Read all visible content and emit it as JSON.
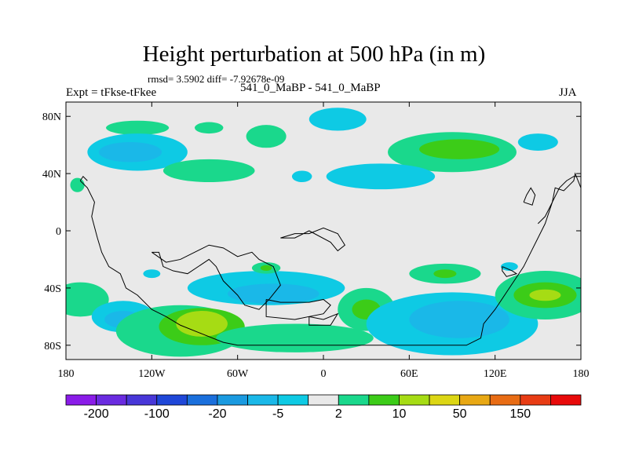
{
  "figure": {
    "title": "Height perturbation at 500 hPa (in m)",
    "stats": "rmsd= 3.5902 diff= -7.92678e-09",
    "left_label": "Expt = tFkse-tFkee",
    "center_label": "541_0_MaBP - 541_0_MaBP",
    "right_label": "JJA"
  },
  "chart_data": {
    "type": "heatmap",
    "title": "Height perturbation at 500 hPa (in m)",
    "variable": "500 hPa height perturbation (m)",
    "season": "JJA",
    "xlim": [
      -180,
      180
    ],
    "ylim": [
      -90,
      90
    ],
    "xticks": [
      -180,
      -120,
      -60,
      0,
      60,
      120,
      180
    ],
    "xtick_labels": [
      "180",
      "120W",
      "60W",
      "0",
      "60E",
      "120E",
      "180"
    ],
    "yticks": [
      80,
      40,
      0,
      -40,
      -80
    ],
    "ytick_labels": [
      "80N",
      "40N",
      "0",
      "40S",
      "80S"
    ],
    "colorbar": {
      "levels": [
        -200,
        -150,
        -100,
        -50,
        -20,
        -10,
        -5,
        -2,
        2,
        5,
        10,
        20,
        50,
        100,
        150,
        200
      ],
      "tick_labels": [
        "-200",
        "-100",
        "-20",
        "-5",
        "2",
        "10",
        "50",
        "150"
      ],
      "tick_levels": [
        -200,
        -100,
        -20,
        -5,
        2,
        10,
        50,
        150
      ],
      "colors": [
        "#8a1ce8",
        "#6a2be0",
        "#4837d8",
        "#1f47d8",
        "#1a6fdc",
        "#1a9ae0",
        "#1ab8e8",
        "#0ecae4",
        "#e9e9e9",
        "#1ad88c",
        "#3ccc18",
        "#a6dc14",
        "#dcd614",
        "#e8a814",
        "#e86c14",
        "#e83c14",
        "#e80a0a"
      ]
    },
    "fields": [
      {
        "lon": -130,
        "lat": 72,
        "rx": 22,
        "ry": 5,
        "level": 9
      },
      {
        "lon": -80,
        "lat": 72,
        "rx": 10,
        "ry": 4,
        "level": 9
      },
      {
        "lon": -130,
        "lat": 55,
        "rx": 35,
        "ry": 13,
        "level": 7
      },
      {
        "lon": -135,
        "lat": 55,
        "rx": 22,
        "ry": 7,
        "level": 6
      },
      {
        "lon": -80,
        "lat": 42,
        "rx": 32,
        "ry": 8,
        "level": 9
      },
      {
        "lon": -40,
        "lat": 66,
        "rx": 14,
        "ry": 8,
        "level": 9
      },
      {
        "lon": -15,
        "lat": 38,
        "rx": 7,
        "ry": 4,
        "level": 7
      },
      {
        "lon": 10,
        "lat": 78,
        "rx": 20,
        "ry": 8,
        "level": 7
      },
      {
        "lon": 90,
        "lat": 55,
        "rx": 45,
        "ry": 14,
        "level": 9
      },
      {
        "lon": 95,
        "lat": 57,
        "rx": 28,
        "ry": 7,
        "level": 10
      },
      {
        "lon": 150,
        "lat": 62,
        "rx": 14,
        "ry": 6,
        "level": 7
      },
      {
        "lon": 40,
        "lat": 38,
        "rx": 38,
        "ry": 9,
        "level": 7
      },
      {
        "lon": -172,
        "lat": 32,
        "rx": 5,
        "ry": 5,
        "level": 9
      },
      {
        "lon": -40,
        "lat": -40,
        "rx": 55,
        "ry": 12,
        "level": 7
      },
      {
        "lon": -35,
        "lat": -44,
        "rx": 32,
        "ry": 7,
        "level": 6
      },
      {
        "lon": -40,
        "lat": -26,
        "rx": 10,
        "ry": 4,
        "level": 9
      },
      {
        "lon": -40,
        "lat": -26,
        "rx": 4,
        "ry": 2,
        "level": 10
      },
      {
        "lon": -120,
        "lat": -30,
        "rx": 6,
        "ry": 3,
        "level": 7
      },
      {
        "lon": -170,
        "lat": -48,
        "rx": 20,
        "ry": 12,
        "level": 9
      },
      {
        "lon": -140,
        "lat": -60,
        "rx": 22,
        "ry": 11,
        "level": 7
      },
      {
        "lon": -140,
        "lat": -62,
        "rx": 13,
        "ry": 6,
        "level": 6
      },
      {
        "lon": -100,
        "lat": -70,
        "rx": 45,
        "ry": 18,
        "level": 9
      },
      {
        "lon": -85,
        "lat": -67,
        "rx": 30,
        "ry": 13,
        "level": 10
      },
      {
        "lon": -85,
        "lat": -65,
        "rx": 18,
        "ry": 9,
        "level": 11
      },
      {
        "lon": -20,
        "lat": -75,
        "rx": 55,
        "ry": 10,
        "level": 9
      },
      {
        "lon": 30,
        "lat": -55,
        "rx": 20,
        "ry": 15,
        "level": 9
      },
      {
        "lon": 30,
        "lat": -55,
        "rx": 10,
        "ry": 7,
        "level": 10
      },
      {
        "lon": 90,
        "lat": -65,
        "rx": 60,
        "ry": 22,
        "level": 7
      },
      {
        "lon": 95,
        "lat": -62,
        "rx": 35,
        "ry": 13,
        "level": 6
      },
      {
        "lon": 85,
        "lat": -30,
        "rx": 25,
        "ry": 7,
        "level": 9
      },
      {
        "lon": 85,
        "lat": -30,
        "rx": 8,
        "ry": 3,
        "level": 10
      },
      {
        "lon": 130,
        "lat": -25,
        "rx": 6,
        "ry": 3,
        "level": 7
      },
      {
        "lon": 155,
        "lat": -45,
        "rx": 35,
        "ry": 17,
        "level": 9
      },
      {
        "lon": 155,
        "lat": -45,
        "rx": 22,
        "ry": 9,
        "level": 10
      },
      {
        "lon": 155,
        "lat": -45,
        "rx": 11,
        "ry": 4,
        "level": 11
      }
    ],
    "coastlines": [
      [
        [
          -170,
          35
        ],
        [
          -165,
          30
        ],
        [
          -160,
          20
        ],
        [
          -162,
          10
        ],
        [
          -158,
          -5
        ],
        [
          -155,
          -15
        ],
        [
          -150,
          -25
        ],
        [
          -142,
          -30
        ],
        [
          -138,
          -40
        ],
        [
          -130,
          -45
        ],
        [
          -120,
          -55
        ],
        [
          -110,
          -60
        ],
        [
          -100,
          -66
        ],
        [
          -85,
          -72
        ],
        [
          -70,
          -78
        ],
        [
          -60,
          -80
        ],
        [
          -20,
          -80
        ],
        [
          60,
          -80
        ],
        [
          100,
          -80
        ],
        [
          110,
          -75
        ],
        [
          112,
          -65
        ],
        [
          120,
          -55
        ],
        [
          130,
          -40
        ],
        [
          140,
          -25
        ],
        [
          145,
          -15
        ],
        [
          150,
          -5
        ],
        [
          155,
          5
        ],
        [
          160,
          20
        ],
        [
          165,
          30
        ],
        [
          170,
          35
        ],
        [
          175,
          38
        ],
        [
          180,
          38
        ]
      ],
      [
        [
          -120,
          -15
        ],
        [
          -115,
          -15
        ],
        [
          -112,
          -25
        ],
        [
          -105,
          -28
        ],
        [
          -95,
          -30
        ],
        [
          -80,
          -20
        ],
        [
          -75,
          -25
        ],
        [
          -70,
          -35
        ],
        [
          -60,
          -45
        ],
        [
          -55,
          -52
        ],
        [
          -45,
          -55
        ],
        [
          -38,
          -48
        ],
        [
          -30,
          -38
        ],
        [
          -35,
          -25
        ],
        [
          -45,
          -20
        ],
        [
          -50,
          -15
        ],
        [
          -60,
          -18
        ],
        [
          -70,
          -12
        ],
        [
          -80,
          -10
        ],
        [
          -90,
          -15
        ],
        [
          -100,
          -20
        ],
        [
          -110,
          -22
        ],
        [
          -120,
          -15
        ]
      ],
      [
        [
          -40,
          -48
        ],
        [
          -30,
          -50
        ],
        [
          -10,
          -50
        ],
        [
          0,
          -48
        ],
        [
          5,
          -52
        ],
        [
          0,
          -58
        ],
        [
          -20,
          -62
        ],
        [
          -40,
          -60
        ],
        [
          -40,
          -48
        ]
      ],
      [
        [
          -10,
          -60
        ],
        [
          0,
          -62
        ],
        [
          10,
          -58
        ],
        [
          5,
          -66
        ],
        [
          -10,
          -66
        ],
        [
          -10,
          -60
        ]
      ],
      [
        [
          -30,
          -5
        ],
        [
          -20,
          -5
        ],
        [
          -10,
          0
        ],
        [
          5,
          -8
        ],
        [
          10,
          -14
        ],
        [
          15,
          -10
        ],
        [
          10,
          -2
        ],
        [
          0,
          2
        ],
        [
          -10,
          -2
        ],
        [
          -20,
          -2
        ],
        [
          -30,
          -5
        ]
      ],
      [
        [
          125,
          -25
        ],
        [
          132,
          -28
        ],
        [
          135,
          -30
        ],
        [
          128,
          -32
        ],
        [
          125,
          -28
        ],
        [
          125,
          -25
        ]
      ],
      [
        [
          150,
          5
        ],
        [
          155,
          10
        ],
        [
          160,
          20
        ],
        [
          162,
          30
        ],
        [
          168,
          28
        ],
        [
          172,
          32
        ],
        [
          175,
          35
        ],
        [
          176,
          40
        ],
        [
          180,
          30
        ]
      ],
      [
        [
          140,
          20
        ],
        [
          142,
          25
        ],
        [
          145,
          30
        ],
        [
          148,
          25
        ],
        [
          146,
          18
        ],
        [
          140,
          20
        ]
      ],
      [
        [
          -170,
          35
        ],
        [
          -168,
          38
        ],
        [
          -165,
          35
        ]
      ]
    ]
  }
}
